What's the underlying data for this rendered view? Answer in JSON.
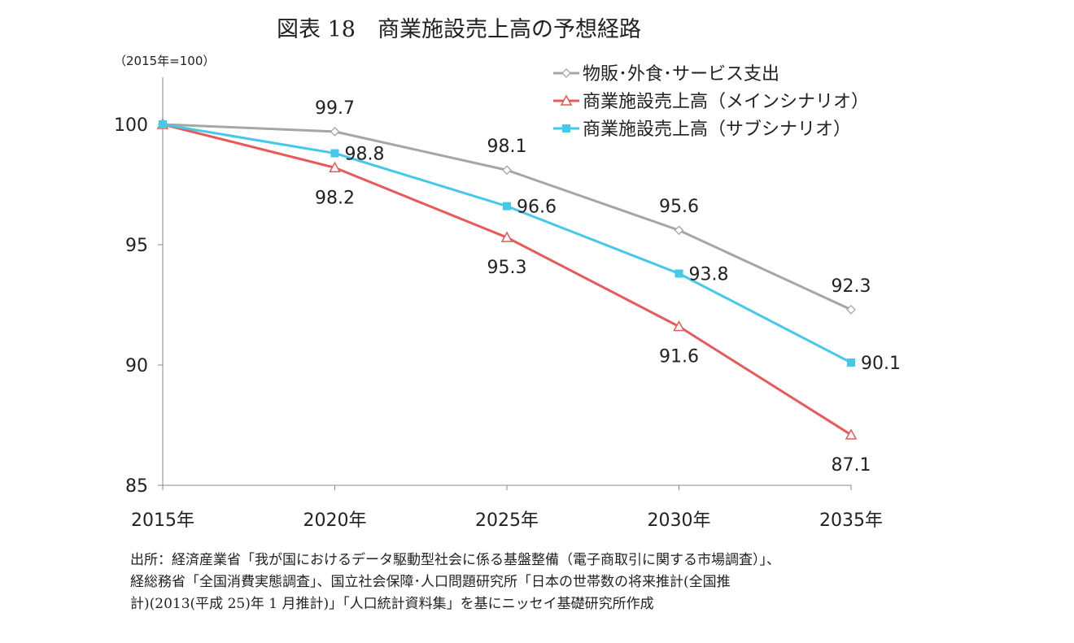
{
  "chart_data": {
    "type": "line",
    "title": "図表 18　商業施設売上高の予想経路",
    "unit_label": "（2015年=100）",
    "categories": [
      "2015年",
      "2020年",
      "2025年",
      "2030年",
      "2035年"
    ],
    "ylim": [
      85,
      100
    ],
    "yticks": [
      85,
      90,
      95,
      100
    ],
    "grid": false,
    "legend_position": "top-right",
    "series": [
      {
        "name": "物販･外食･サービス支出",
        "values": [
          100,
          99.7,
          98.1,
          95.6,
          92.3
        ],
        "color": "#a6a6a6",
        "marker": "diamond-open",
        "labels": [
          "",
          "99.7",
          "98.1",
          "95.6",
          "92.3"
        ],
        "label_pos": "above"
      },
      {
        "name": "商業施設売上高（メインシナリオ）",
        "values": [
          100,
          98.2,
          95.3,
          91.6,
          87.1
        ],
        "color": "#e8595a",
        "marker": "triangle-open",
        "labels": [
          "",
          "98.2",
          "95.3",
          "91.6",
          "87.1"
        ],
        "label_pos": "below"
      },
      {
        "name": "商業施設売上高（サブシナリオ）",
        "values": [
          100,
          98.8,
          96.6,
          93.8,
          90.1
        ],
        "color": "#46c8ea",
        "marker": "square",
        "labels": [
          "",
          "98.8",
          "96.6",
          "93.8",
          "90.1"
        ],
        "label_pos": "right"
      }
    ]
  },
  "source": [
    "出所：経済産業省「我が国におけるデータ駆動型社会に係る基盤整備（電子商取引に関する市場調査）」、",
    "経総務省「全国消費実態調査」、国立社会保障･人口問題研究所「日本の世帯数の将来推計(全国推",
    "計)(2013(平成 25)年 1 月推計)」「人口統計資料集」を基にニッセイ基礎研究所作成"
  ]
}
